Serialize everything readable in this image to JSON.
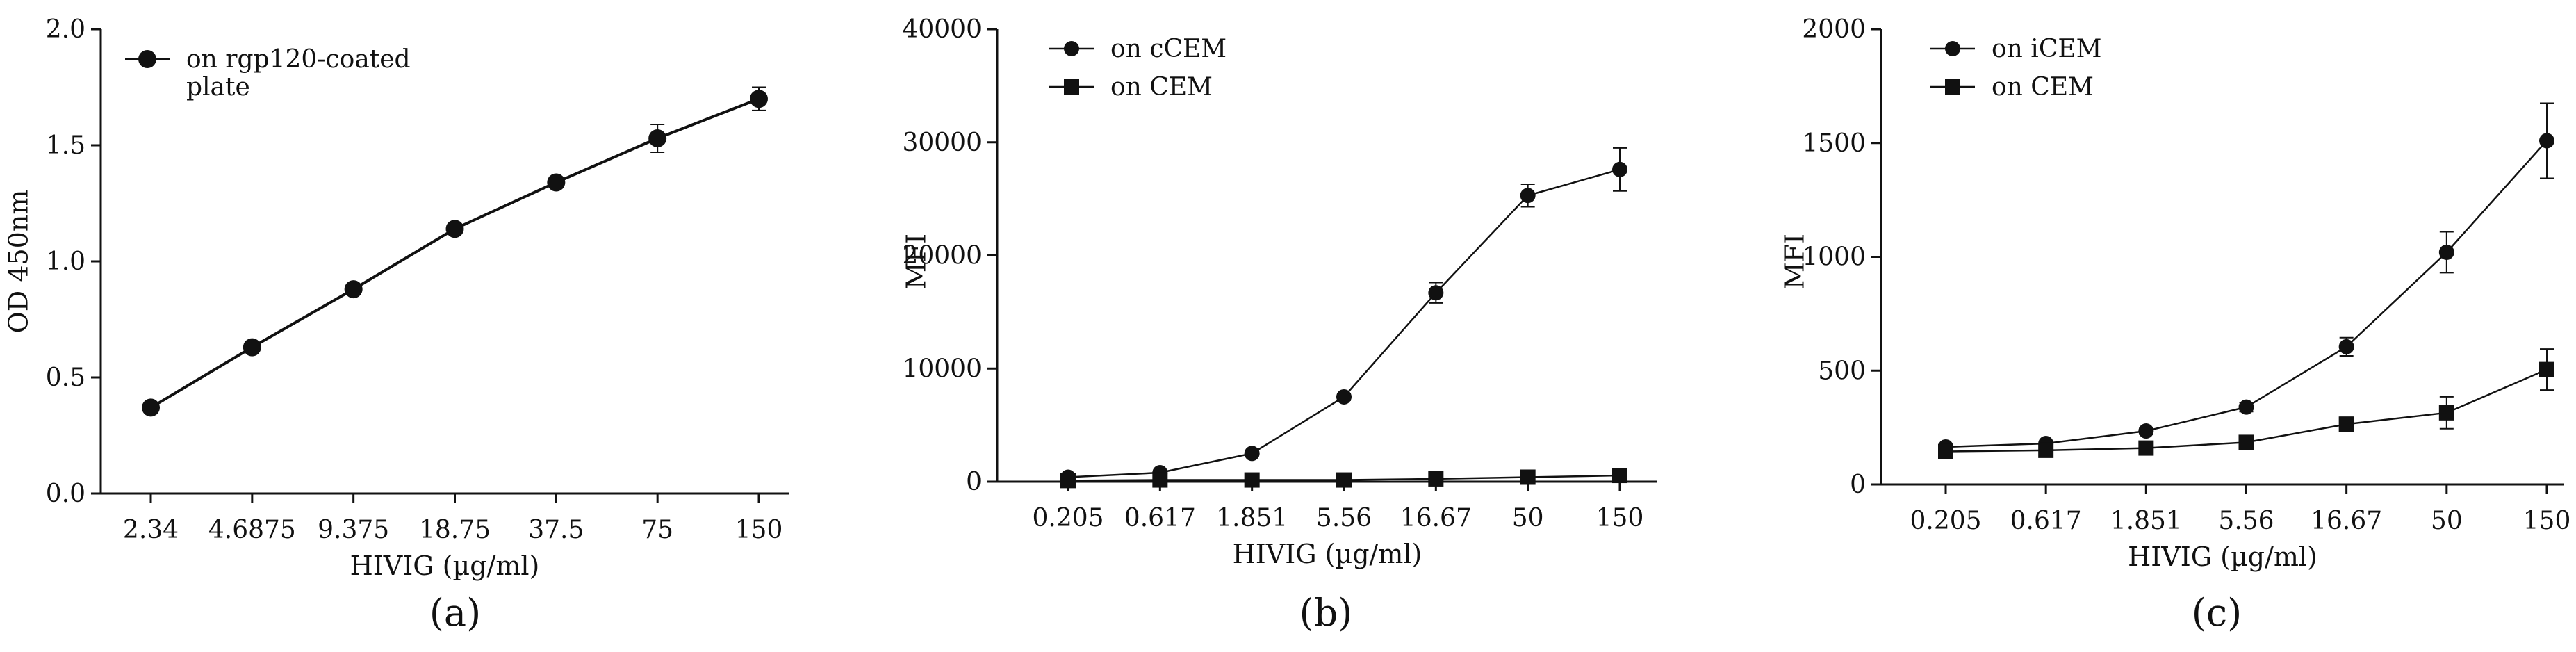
{
  "chart_data": [
    {
      "type": "line",
      "panel_label": "(a)",
      "xlabel": "HIVIG (µg/ml)",
      "ylabel": "OD 450nm",
      "categories": [
        "2.34",
        "4.6875",
        "9.375",
        "18.75",
        "37.5",
        "75",
        "150"
      ],
      "ylim": [
        0,
        2.0
      ],
      "yticks": [
        "0.0",
        "0.5",
        "1.0",
        "1.5",
        "2.0"
      ],
      "legend_position": "top-left",
      "series": [
        {
          "name": "on rgp120-coated plate",
          "legend_lines": [
            "on rgp120-coated",
            "plate"
          ],
          "marker": "circle",
          "values": [
            0.37,
            0.63,
            0.88,
            1.14,
            1.34,
            1.53,
            1.7
          ],
          "errors": [
            0.02,
            0.02,
            0.02,
            0.02,
            0.02,
            0.06,
            0.05
          ]
        }
      ]
    },
    {
      "type": "line",
      "panel_label": "(b)",
      "xlabel": "HIVIG (µg/ml)",
      "ylabel": "MFI",
      "categories": [
        "0.205",
        "0.617",
        "1.851",
        "5.56",
        "16.67",
        "50",
        "150"
      ],
      "ylim": [
        0,
        40000
      ],
      "yticks": [
        "0",
        "10000",
        "20000",
        "30000",
        "40000"
      ],
      "legend_position": "top-left",
      "series": [
        {
          "name": "on cCEM",
          "legend_lines": [
            "on cCEM"
          ],
          "marker": "circle",
          "values": [
            400,
            800,
            2500,
            7500,
            16700,
            25300,
            27600
          ],
          "errors": [
            100,
            150,
            200,
            300,
            900,
            1000,
            1900
          ]
        },
        {
          "name": "on CEM",
          "legend_lines": [
            "on CEM"
          ],
          "marker": "square",
          "values": [
            100,
            150,
            150,
            150,
            250,
            400,
            550
          ],
          "errors": [
            30,
            30,
            30,
            30,
            50,
            80,
            100
          ]
        }
      ]
    },
    {
      "type": "line",
      "panel_label": "(c)",
      "xlabel": "HIVIG (µg/ml)",
      "ylabel": "MFI",
      "categories": [
        "0.205",
        "0.617",
        "1.851",
        "5.56",
        "16.67",
        "50",
        "150"
      ],
      "ylim": [
        0,
        2000
      ],
      "yticks": [
        "0",
        "500",
        "1000",
        "1500",
        "2000"
      ],
      "legend_position": "top-left",
      "series": [
        {
          "name": "on iCEM",
          "legend_lines": [
            "on iCEM"
          ],
          "marker": "circle",
          "values": [
            165,
            180,
            235,
            340,
            605,
            1020,
            1510
          ],
          "errors": [
            10,
            10,
            15,
            20,
            40,
            90,
            165
          ]
        },
        {
          "name": "on CEM",
          "legend_lines": [
            "on CEM"
          ],
          "marker": "square",
          "values": [
            145,
            150,
            160,
            185,
            265,
            315,
            505
          ],
          "errors": [
            10,
            10,
            10,
            15,
            30,
            70,
            90
          ]
        }
      ]
    }
  ]
}
